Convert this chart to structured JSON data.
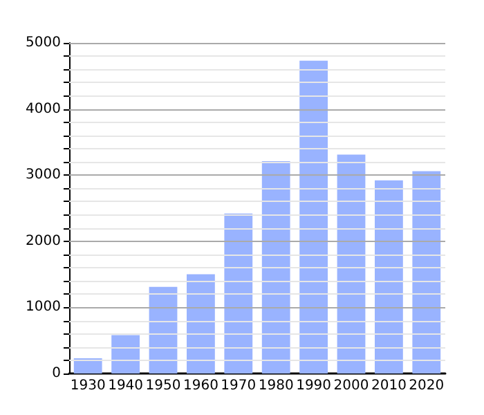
{
  "chart_data": {
    "type": "bar",
    "categories": [
      "1930",
      "1940",
      "1950",
      "1960",
      "1970",
      "1980",
      "1990",
      "2000",
      "2010",
      "2020"
    ],
    "values": [
      230,
      580,
      1310,
      1500,
      2420,
      3210,
      4730,
      3310,
      2920,
      3060
    ],
    "color": "#99b3ff",
    "ylim": [
      0,
      5000
    ],
    "yticks": [
      0,
      {
        "value": 200,
        "label": null
      },
      {
        "value": 400,
        "label": null
      },
      {
        "value": 600,
        "label": null
      },
      {
        "value": 800,
        "label": null
      },
      1000,
      {
        "value": 1200,
        "label": null
      },
      {
        "value": 1400,
        "label": null
      },
      {
        "value": 1600,
        "label": null
      },
      {
        "value": 1800,
        "label": null
      },
      2000,
      {
        "value": 2200,
        "label": null
      },
      {
        "value": 2400,
        "label": null
      },
      {
        "value": 2600,
        "label": null
      },
      {
        "value": 2800,
        "label": null
      },
      3000,
      {
        "value": 3200,
        "label": null
      },
      {
        "value": 3400,
        "label": null
      },
      {
        "value": 3600,
        "label": null
      },
      {
        "value": 3800,
        "label": null
      },
      4000,
      {
        "value": 4200,
        "label": null
      },
      {
        "value": 4400,
        "label": null
      },
      {
        "value": 4600,
        "label": null
      },
      {
        "value": 4800,
        "label": null
      },
      5000
    ],
    "grid": "y"
  }
}
